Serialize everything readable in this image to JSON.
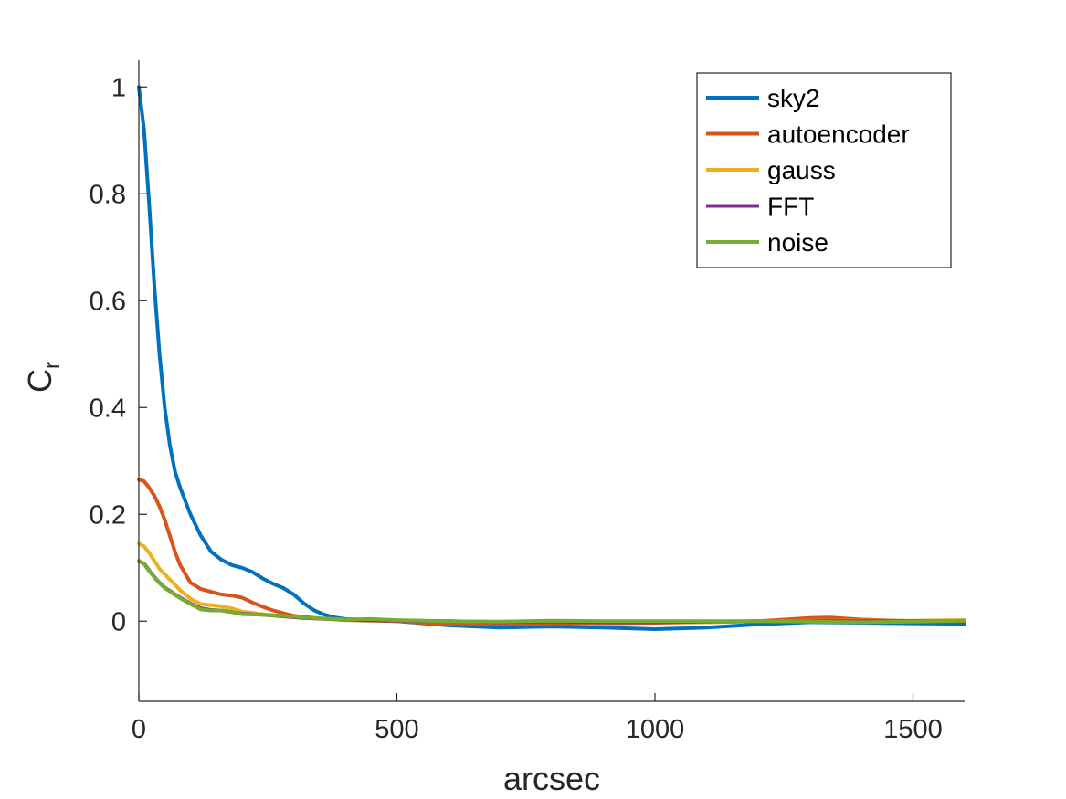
{
  "chart_data": {
    "type": "line",
    "xlabel": "arcsec",
    "ylabel": "C",
    "ylabel_subscript": "r",
    "xlim": [
      0,
      1600
    ],
    "ylim": [
      -0.15,
      1.05
    ],
    "xticks": [
      0,
      500,
      1000,
      1500
    ],
    "yticks": [
      0,
      0.2,
      0.4,
      0.6,
      0.8,
      1
    ],
    "ytick_labels": [
      "0",
      "0.2",
      "0.4",
      "0.6",
      "0.8",
      "1"
    ],
    "grid": false,
    "legend_position": "top-right",
    "series": [
      {
        "name": "sky2",
        "color": "#0072BD",
        "x": [
          0,
          10,
          20,
          30,
          40,
          50,
          60,
          70,
          80,
          100,
          120,
          140,
          160,
          180,
          200,
          220,
          240,
          260,
          280,
          300,
          320,
          340,
          360,
          380,
          400,
          450,
          500,
          600,
          700,
          800,
          900,
          1000,
          1100,
          1200,
          1300,
          1400,
          1500,
          1600
        ],
        "y": [
          1.0,
          0.92,
          0.78,
          0.63,
          0.5,
          0.4,
          0.33,
          0.28,
          0.25,
          0.2,
          0.16,
          0.13,
          0.115,
          0.105,
          0.1,
          0.092,
          0.08,
          0.07,
          0.062,
          0.05,
          0.033,
          0.02,
          0.012,
          0.007,
          0.004,
          0.002,
          0.0,
          -0.008,
          -0.012,
          -0.01,
          -0.012,
          -0.015,
          -0.012,
          -0.006,
          -0.002,
          -0.003,
          -0.004,
          -0.005
        ]
      },
      {
        "name": "autoencoder",
        "color": "#D95319",
        "x": [
          0,
          10,
          20,
          30,
          40,
          50,
          60,
          70,
          80,
          100,
          120,
          140,
          160,
          180,
          200,
          220,
          240,
          260,
          280,
          300,
          350,
          400,
          500,
          600,
          700,
          800,
          900,
          1000,
          1100,
          1200,
          1300,
          1340,
          1400,
          1500,
          1600
        ],
        "y": [
          0.265,
          0.262,
          0.25,
          0.235,
          0.215,
          0.19,
          0.16,
          0.13,
          0.105,
          0.072,
          0.06,
          0.055,
          0.05,
          0.048,
          0.044,
          0.035,
          0.027,
          0.02,
          0.015,
          0.01,
          0.005,
          0.002,
          0.0,
          -0.006,
          -0.006,
          -0.004,
          -0.004,
          -0.003,
          -0.002,
          0.0,
          0.006,
          0.007,
          0.003,
          0.0,
          0.0
        ]
      },
      {
        "name": "gauss",
        "color": "#EDB120",
        "x": [
          0,
          10,
          20,
          30,
          40,
          50,
          60,
          70,
          80,
          100,
          120,
          140,
          160,
          180,
          200,
          240,
          280,
          320,
          400,
          500,
          600,
          700,
          800,
          900,
          1000,
          1100,
          1200,
          1300,
          1400,
          1500,
          1600
        ],
        "y": [
          0.145,
          0.14,
          0.128,
          0.113,
          0.098,
          0.088,
          0.078,
          0.068,
          0.058,
          0.042,
          0.032,
          0.03,
          0.028,
          0.024,
          0.018,
          0.013,
          0.009,
          0.006,
          0.003,
          0.001,
          0.0,
          -0.002,
          -0.001,
          -0.002,
          -0.002,
          -0.002,
          0.0,
          0.001,
          0.001,
          0.001,
          0.002
        ]
      },
      {
        "name": "FFT",
        "color": "#7E2F8E",
        "x": [
          0,
          10,
          20,
          30,
          40,
          50,
          60,
          70,
          80,
          100,
          120,
          140,
          160,
          180,
          200,
          240,
          280,
          320,
          400,
          500,
          600,
          700,
          800,
          900,
          1000,
          1100,
          1200,
          1300,
          1400,
          1500,
          1600
        ],
        "y": [
          0.112,
          0.108,
          0.095,
          0.083,
          0.072,
          0.063,
          0.057,
          0.05,
          0.044,
          0.033,
          0.024,
          0.021,
          0.02,
          0.017,
          0.014,
          0.012,
          0.009,
          0.006,
          0.003,
          0.001,
          0.0,
          -0.002,
          -0.001,
          -0.002,
          -0.002,
          -0.001,
          0.0,
          0.0,
          0.0,
          0.0,
          0.0
        ]
      },
      {
        "name": "noise",
        "color": "#77AC30",
        "x": [
          0,
          10,
          20,
          30,
          40,
          50,
          60,
          70,
          80,
          100,
          120,
          140,
          160,
          180,
          200,
          240,
          280,
          320,
          400,
          450,
          500,
          600,
          700,
          800,
          900,
          1000,
          1100,
          1200,
          1300,
          1400,
          1500,
          1600
        ],
        "y": [
          0.113,
          0.107,
          0.094,
          0.082,
          0.071,
          0.062,
          0.056,
          0.049,
          0.043,
          0.032,
          0.022,
          0.02,
          0.02,
          0.017,
          0.013,
          0.012,
          0.01,
          0.007,
          0.003,
          0.004,
          0.002,
          0.0,
          -0.001,
          0.001,
          0.0,
          0.0,
          0.0,
          0.0,
          -0.001,
          -0.002,
          -0.001,
          0.001
        ]
      }
    ]
  }
}
